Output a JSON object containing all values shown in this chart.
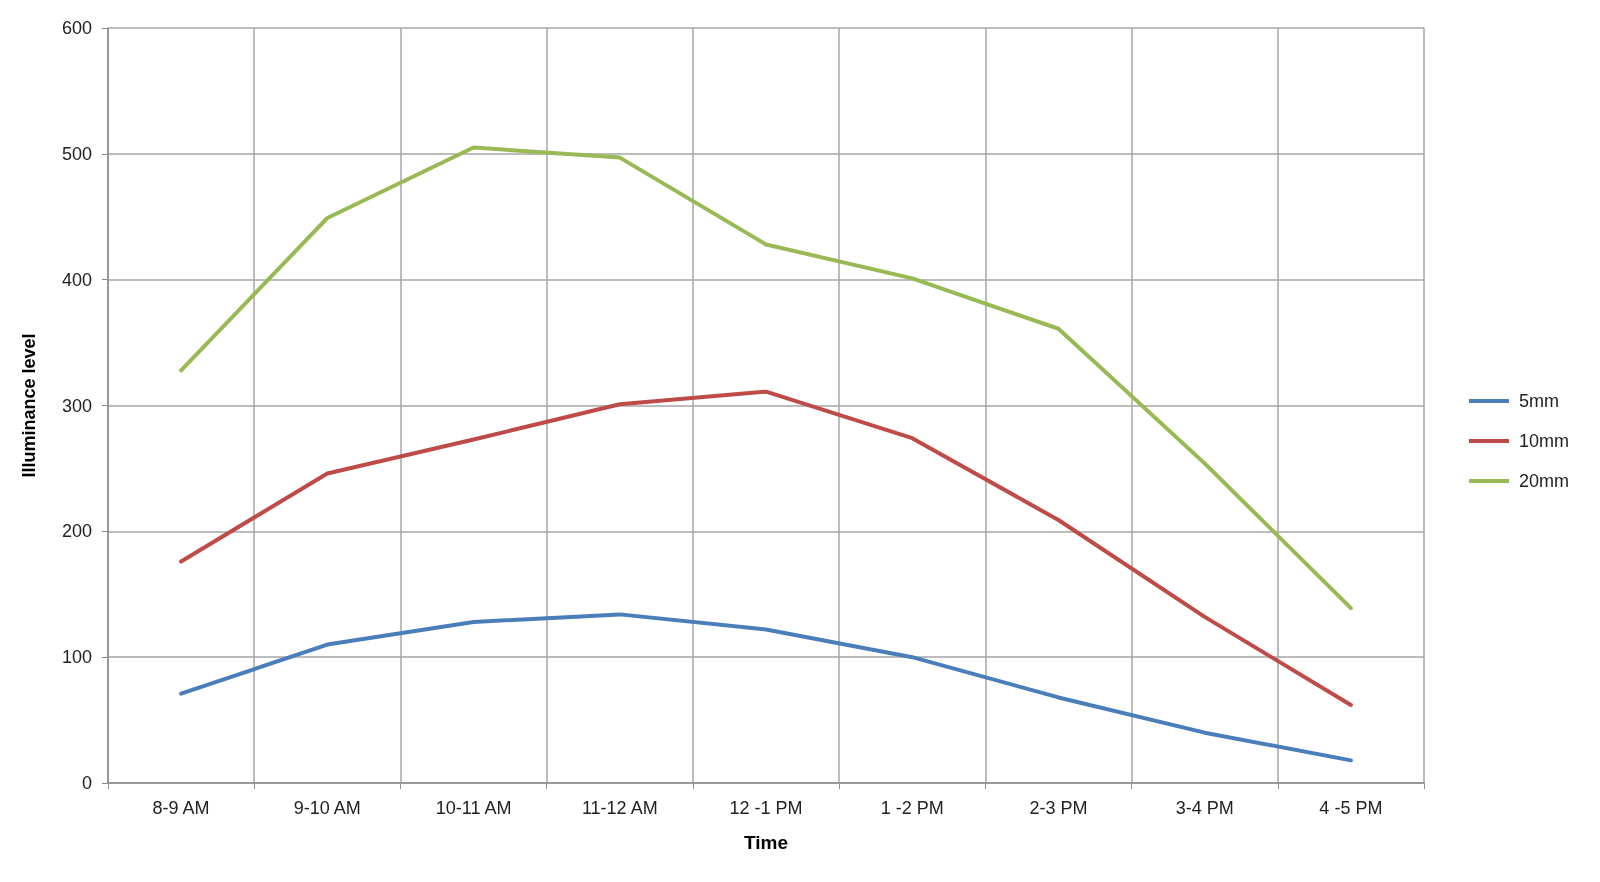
{
  "chart_data": {
    "type": "line",
    "xlabel": "Time",
    "ylabel": "Illuminance level",
    "categories": [
      "8-9 AM",
      "9-10 AM",
      "10-11 AM",
      "11-12 AM",
      "12 -1 PM",
      "1 -2 PM",
      "2-3 PM",
      "3-4 PM",
      "4 -5 PM"
    ],
    "series": [
      {
        "name": "5mm",
        "color": "#4a7ebb",
        "values": [
          71,
          110,
          128,
          134,
          122,
          100,
          68,
          40,
          18
        ]
      },
      {
        "name": "10mm",
        "color": "#be4b48",
        "values": [
          176,
          246,
          273,
          301,
          311,
          274,
          209,
          132,
          62
        ]
      },
      {
        "name": "20mm",
        "color": "#98b954",
        "values": [
          328,
          449,
          505,
          497,
          428,
          401,
          361,
          254,
          139
        ]
      }
    ],
    "ylim": [
      0,
      600
    ],
    "yticks": [
      0,
      100,
      200,
      300,
      400,
      500,
      600
    ],
    "grid": true,
    "legend": "right",
    "marker": "none",
    "line_style": "solid"
  }
}
